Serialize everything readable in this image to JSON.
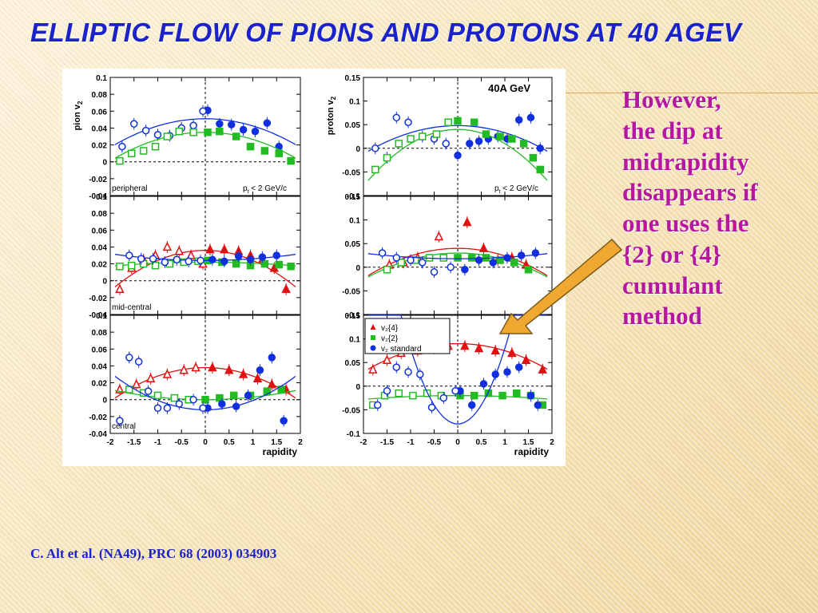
{
  "slide": {
    "title": "ELLIPTIC FLOW OF PIONS AND PROTONS AT 40 AGEV",
    "annotation_lines": [
      "However,",
      "the dip at",
      "midrapidity",
      "disappears if",
      "one uses the",
      "{2} or {4}",
      "cumulant",
      "method"
    ],
    "citation": "C. Alt et al. (NA49), PRC 68 (2003) 034903",
    "colors": {
      "title": "#1a22c8",
      "annotation": "#b5179e",
      "arrow": "#f0a830"
    }
  },
  "figure": {
    "energy_label": "40A  GeV",
    "legend": {
      "v2_4": "v₂{4}",
      "v2_2": "v₂{2}",
      "v2_standard": "v₂ standard"
    }
  },
  "chart_data": {
    "type": "scatter",
    "x_label": "rapidity",
    "x_ticks": [
      "-2",
      "-1.5",
      "-1",
      "-0.5",
      "0",
      "0.5",
      "1",
      "1.5",
      "2"
    ],
    "xlim": [
      -2,
      2
    ],
    "series_colors": {
      "v2{4}": "#e01010",
      "v2{2}": "#22bb22",
      "v2 standard": "#1030e0"
    },
    "panels": [
      {
        "id": "pion-peripheral",
        "particle": "pion",
        "ylabel": "pion v",
        "ylabel_sub": "2",
        "ylim": [
          -0.04,
          0.1
        ],
        "yticks": [
          "-0.04",
          "-0.02",
          "0",
          "0.02",
          "0.04",
          "0.06",
          "0.08",
          "0.1"
        ],
        "centrality": "peripheral",
        "cut_label": "p",
        "cut_sub": "t",
        "cut_rest": " < 2 GeV/c",
        "series": [
          {
            "name": "v2 standard",
            "shape": "circle",
            "filled": true,
            "fit": [
              0.051,
              -0.0085
            ],
            "x": [
              0.05,
              0.3,
              0.55,
              0.8,
              1.05,
              1.3,
              1.55
            ],
            "y": [
              0.061,
              0.045,
              0.044,
              0.038,
              0.036,
              0.046,
              0.018
            ]
          },
          {
            "name": "v2 standard",
            "shape": "circle",
            "filled": false,
            "x": [
              -1.75,
              -1.5,
              -1.25,
              -1.0,
              -0.75,
              -0.5,
              -0.25,
              -0.05
            ],
            "y": [
              0.018,
              0.045,
              0.037,
              0.032,
              0.031,
              0.04,
              0.043,
              0.06
            ]
          },
          {
            "name": "v2{2}",
            "shape": "square",
            "filled": true,
            "fit": [
              0.035,
              -0.0085
            ],
            "x": [
              0.05,
              0.3,
              0.65,
              0.95,
              1.25,
              1.55,
              1.8
            ],
            "y": [
              0.035,
              0.036,
              0.03,
              0.018,
              0.013,
              0.01,
              0.001
            ]
          },
          {
            "name": "v2{2}",
            "shape": "square",
            "filled": false,
            "x": [
              -1.8,
              -1.55,
              -1.3,
              -1.05,
              -0.8,
              -0.55,
              -0.25
            ],
            "y": [
              0.001,
              0.01,
              0.013,
              0.018,
              0.03,
              0.036,
              0.035
            ]
          }
        ]
      },
      {
        "id": "proton-peripheral",
        "particle": "proton",
        "ylabel": "proton v",
        "ylabel_sub": "2",
        "ylim": [
          -0.1,
          0.15
        ],
        "yticks": [
          "-0.1",
          "-0.05",
          "0",
          "0.05",
          "0.1",
          "0.15"
        ],
        "centrality": "",
        "cut_label": "p",
        "cut_sub": "t",
        "cut_rest": " < 2 GeV/c",
        "show_energy": true,
        "series": [
          {
            "name": "v2 standard",
            "shape": "circle",
            "filled": true,
            "fit": [
              0.048,
              -0.015
            ],
            "x": [
              0.0,
              0.25,
              0.45,
              0.65,
              0.85,
              1.05,
              1.3,
              1.55,
              1.75
            ],
            "y": [
              -0.015,
              0.01,
              0.015,
              0.02,
              0.025,
              0.02,
              0.06,
              0.065,
              0.0
            ]
          },
          {
            "name": "v2 standard",
            "shape": "circle",
            "filled": false,
            "x": [
              -1.75,
              -1.5,
              -1.3,
              -1.05,
              -0.75,
              -0.5,
              -0.25
            ],
            "y": [
              0.0,
              -0.02,
              0.065,
              0.055,
              0.025,
              0.02,
              0.01
            ]
          },
          {
            "name": "v2{2}",
            "shape": "square",
            "filled": true,
            "fit": [
              0.04,
              -0.03
            ],
            "x": [
              0.0,
              0.35,
              0.6,
              0.9,
              1.15,
              1.4,
              1.6,
              1.75
            ],
            "y": [
              0.058,
              0.055,
              0.03,
              0.025,
              0.02,
              0.01,
              -0.02,
              -0.045
            ]
          },
          {
            "name": "v2{2}",
            "shape": "square",
            "filled": false,
            "x": [
              -1.75,
              -1.5,
              -1.25,
              -1.0,
              -0.75,
              -0.45,
              -0.2
            ],
            "y": [
              -0.045,
              -0.02,
              0.01,
              0.02,
              0.025,
              0.03,
              0.055
            ]
          }
        ]
      },
      {
        "id": "pion-mid-central",
        "particle": "pion",
        "ylabel": "",
        "ylim": [
          -0.04,
          0.1
        ],
        "yticks": [
          "-0.04",
          "-0.02",
          "0",
          "0.02",
          "0.04",
          "0.06",
          "0.08",
          "0.1"
        ],
        "centrality": "mid-central",
        "series": [
          {
            "name": "v2{4}",
            "shape": "triangle",
            "filled": true,
            "fit": [
              0.036,
              -0.012
            ],
            "x": [
              0.1,
              0.4,
              0.7,
              0.95,
              1.2,
              1.45,
              1.7
            ],
            "y": [
              0.037,
              0.037,
              0.035,
              0.03,
              0.025,
              0.015,
              -0.01
            ]
          },
          {
            "name": "v2{4}",
            "shape": "triangle",
            "filled": false,
            "x": [
              -1.8,
              -1.55,
              -1.3,
              -1.05,
              -0.8,
              -0.55,
              -0.3,
              -0.05
            ],
            "y": [
              -0.01,
              0.015,
              0.025,
              0.03,
              0.04,
              0.035,
              0.03,
              0.02
            ]
          },
          {
            "name": "v2{2}",
            "shape": "square",
            "filled": true,
            "fit": [
              0.022,
              -0.0012
            ],
            "x": [
              0.05,
              0.35,
              0.65,
              0.95,
              1.25,
              1.55,
              1.8
            ],
            "y": [
              0.024,
              0.022,
              0.02,
              0.018,
              0.02,
              0.019,
              0.017
            ]
          },
          {
            "name": "v2{2}",
            "shape": "square",
            "filled": false,
            "x": [
              -1.8,
              -1.55,
              -1.3,
              -1.05,
              -0.75,
              -0.45,
              -0.15
            ],
            "y": [
              0.017,
              0.018,
              0.02,
              0.018,
              0.02,
              0.022,
              0.023
            ]
          },
          {
            "name": "v2 standard",
            "shape": "circle",
            "filled": true,
            "fit": [
              0.024,
              0.002
            ],
            "x": [
              0.15,
              0.4,
              0.7,
              0.95,
              1.2,
              1.5
            ],
            "y": [
              0.025,
              0.023,
              0.029,
              0.025,
              0.028,
              0.03
            ]
          },
          {
            "name": "v2 standard",
            "shape": "circle",
            "filled": false,
            "x": [
              -1.6,
              -1.35,
              -1.1,
              -0.85,
              -0.6,
              -0.35,
              -0.1
            ],
            "y": [
              0.03,
              0.026,
              0.026,
              0.022,
              0.025,
              0.023,
              0.024
            ]
          }
        ]
      },
      {
        "id": "proton-mid-central",
        "particle": "proton",
        "ylabel": "",
        "ylim": [
          -0.1,
          0.15
        ],
        "yticks": [
          "-0.1",
          "-0.05",
          "0",
          "0.05",
          "0.1",
          "0.15"
        ],
        "centrality": "",
        "series": [
          {
            "name": "v2{4}",
            "shape": "triangle",
            "filled": true,
            "fit": [
              0.04,
              -0.016
            ],
            "x": [
              0.2,
              0.55,
              0.85,
              1.15,
              1.45
            ],
            "y": [
              0.095,
              0.04,
              0.015,
              0.02,
              0.005
            ]
          },
          {
            "name": "v2{4}",
            "shape": "triangle",
            "filled": false,
            "x": [
              -1.45,
              -1.15,
              -0.85,
              -0.4
            ],
            "y": [
              0.005,
              0.01,
              0.02,
              0.065
            ]
          },
          {
            "name": "v2{2}",
            "shape": "square",
            "filled": true,
            "fit": [
              0.03,
              -0.014
            ],
            "x": [
              0.0,
              0.3,
              0.6,
              0.9,
              1.2,
              1.5
            ],
            "y": [
              0.02,
              0.02,
              0.02,
              0.015,
              0.01,
              -0.005
            ]
          },
          {
            "name": "v2{2}",
            "shape": "square",
            "filled": false,
            "x": [
              -1.5,
              -1.2,
              -0.9,
              -0.6,
              -0.3
            ],
            "y": [
              -0.005,
              0.01,
              0.015,
              0.02,
              0.02
            ]
          },
          {
            "name": "v2 standard",
            "shape": "circle",
            "filled": true,
            "fit": [
              0.018,
              0.003
            ],
            "x": [
              0.15,
              0.45,
              0.75,
              1.05,
              1.35,
              1.65
            ],
            "y": [
              -0.005,
              0.015,
              0.01,
              0.02,
              0.025,
              0.03
            ]
          },
          {
            "name": "v2 standard",
            "shape": "circle",
            "filled": false,
            "x": [
              -1.6,
              -1.3,
              -1.0,
              -0.75,
              -0.5,
              -0.15
            ],
            "y": [
              0.03,
              0.02,
              0.015,
              0.01,
              -0.01,
              0.0
            ]
          }
        ]
      },
      {
        "id": "pion-central",
        "particle": "pion",
        "ylabel": "",
        "ylim": [
          -0.04,
          0.1
        ],
        "yticks": [
          "-0.04",
          "-0.02",
          "0",
          "0.02",
          "0.04",
          "0.06",
          "0.08",
          "0.1"
        ],
        "centrality": "central",
        "series": [
          {
            "name": "v2{4}",
            "shape": "triangle",
            "filled": true,
            "fit": [
              0.038,
              -0.01
            ],
            "x": [
              0.15,
              0.5,
              0.8,
              1.1,
              1.4,
              1.7
            ],
            "y": [
              0.038,
              0.035,
              0.03,
              0.025,
              0.018,
              0.012
            ]
          },
          {
            "name": "v2{4}",
            "shape": "triangle",
            "filled": false,
            "x": [
              -1.8,
              -1.45,
              -1.15,
              -0.8,
              -0.45,
              -0.2
            ],
            "y": [
              0.012,
              0.018,
              0.025,
              0.03,
              0.035,
              0.038
            ]
          },
          {
            "name": "v2{2}",
            "shape": "square",
            "filled": true,
            "fit": [
              0.0,
              0.003
            ],
            "x": [
              0.0,
              0.3,
              0.6,
              0.95,
              1.3,
              1.6
            ],
            "y": [
              0.0,
              0.002,
              0.005,
              0.005,
              0.01,
              0.012
            ]
          },
          {
            "name": "v2{2}",
            "shape": "square",
            "filled": false,
            "x": [
              -1.6,
              -1.3,
              -1.0,
              -0.65,
              -0.35
            ],
            "y": [
              0.012,
              0.008,
              0.005,
              0.002,
              0.0
            ]
          },
          {
            "name": "v2 standard",
            "shape": "circle",
            "filled": true,
            "fit": [
              -0.012,
              0.011
            ],
            "x": [
              0.05,
              0.35,
              0.65,
              0.9,
              1.15,
              1.4,
              1.65
            ],
            "y": [
              -0.01,
              -0.005,
              -0.008,
              0.005,
              0.035,
              0.05,
              -0.025
            ]
          },
          {
            "name": "v2 standard",
            "shape": "circle",
            "filled": false,
            "x": [
              -1.8,
              -1.6,
              -1.4,
              -1.2,
              -1.0,
              -0.8,
              -0.55,
              -0.25,
              -0.05
            ],
            "y": [
              -0.025,
              0.05,
              0.045,
              0.01,
              -0.01,
              -0.01,
              -0.005,
              0.0,
              -0.01
            ]
          }
        ]
      },
      {
        "id": "proton-central",
        "particle": "proton",
        "ylabel": "",
        "ylim": [
          -0.1,
          0.15
        ],
        "yticks": [
          "-0.1",
          "-0.05",
          "0",
          "0.05",
          "0.1",
          "0.15"
        ],
        "centrality": "",
        "show_legend": true,
        "series": [
          {
            "name": "v2{4}",
            "shape": "triangle",
            "filled": true,
            "fit": [
              0.09,
              -0.015
            ],
            "x": [
              0.15,
              0.45,
              0.8,
              1.15,
              1.45,
              1.8
            ],
            "y": [
              0.085,
              0.08,
              0.075,
              0.07,
              0.055,
              0.035
            ]
          },
          {
            "name": "v2{4}",
            "shape": "triangle",
            "filled": false,
            "x": [
              -1.8,
              -1.5,
              -1.2,
              -0.85,
              -0.5,
              -0.2
            ],
            "y": [
              0.035,
              0.055,
              0.07,
              0.075,
              0.08,
              0.085
            ]
          },
          {
            "name": "v2{2}",
            "shape": "square",
            "filled": true,
            "fit": [
              -0.02,
              -0.002
            ],
            "x": [
              0.05,
              0.35,
              0.65,
              0.95,
              1.25,
              1.55,
              1.8
            ],
            "y": [
              -0.02,
              -0.02,
              -0.015,
              -0.02,
              -0.015,
              -0.02,
              -0.04
            ]
          },
          {
            "name": "v2{2}",
            "shape": "square",
            "filled": false,
            "x": [
              -1.8,
              -1.55,
              -1.25,
              -0.95,
              -0.65,
              -0.35
            ],
            "y": [
              -0.04,
              -0.02,
              -0.015,
              -0.02,
              -0.015,
              -0.02
            ]
          },
          {
            "name": "v2 standard",
            "shape": "circle",
            "filled": true,
            "fit": [
              -0.08,
              0.16
            ],
            "x": [
              0.05,
              0.3,
              0.55,
              0.8,
              1.05,
              1.3,
              1.55,
              1.7
            ],
            "y": [
              -0.01,
              -0.04,
              0.005,
              0.025,
              0.03,
              0.04,
              -0.02,
              -0.04
            ]
          },
          {
            "name": "v2 standard",
            "shape": "circle",
            "filled": false,
            "x": [
              -1.7,
              -1.5,
              -1.3,
              -1.05,
              -0.8,
              -0.55,
              -0.3,
              -0.05
            ],
            "y": [
              -0.04,
              -0.01,
              0.04,
              0.03,
              0.025,
              -0.045,
              -0.025,
              -0.01
            ]
          }
        ]
      }
    ]
  }
}
